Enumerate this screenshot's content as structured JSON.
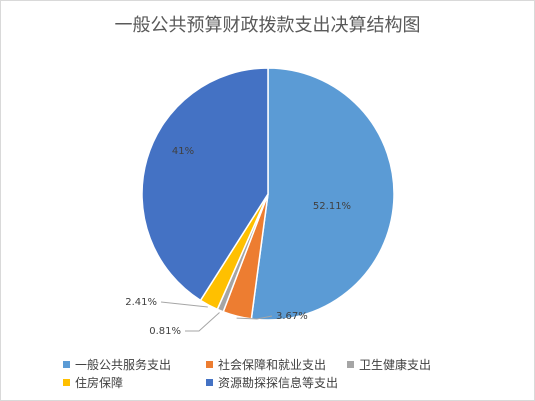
{
  "chart_data": {
    "type": "pie",
    "title": "一般公共预算财政拨款支出决算结构图",
    "categories": [
      "一般公共服务支出",
      "社会保障和就业支出",
      "卫生健康支出",
      "住房保障",
      "资源勘探探信息等支出"
    ],
    "values": [
      52.11,
      3.67,
      0.81,
      2.41,
      41
    ],
    "data_labels": [
      "52.11%",
      "3.67%",
      "0.81%",
      "2.41%",
      "41%"
    ],
    "colors": [
      "#5b9bd5",
      "#ed7d31",
      "#a5a5a5",
      "#ffc000",
      "#4472c4"
    ],
    "legend_position": "bottom",
    "start_angle": "12 o'clock, clockwise"
  }
}
